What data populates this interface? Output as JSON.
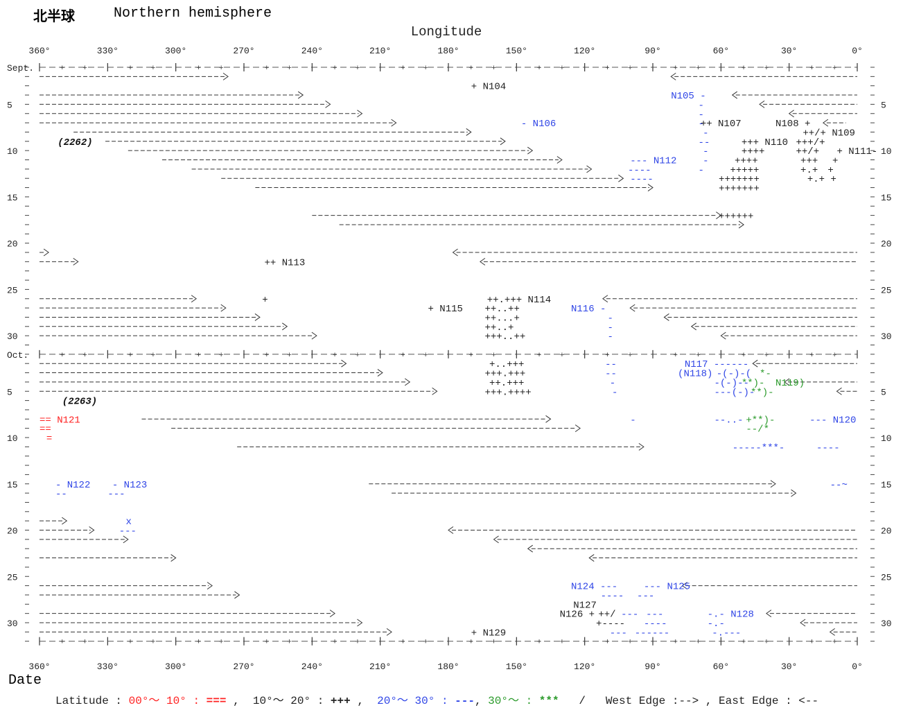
{
  "title_cn": "北半球",
  "title_en": "Northern hemisphere",
  "chart_data": {
    "type": "scatter",
    "xlabel": "Longitude",
    "ylabel": "Date",
    "x_ticks": [
      "360°",
      "330°",
      "300°",
      "270°",
      "240°",
      "210°",
      "180°",
      "150°",
      "120°",
      "90°",
      "60°",
      "30°",
      "0°"
    ],
    "axis_rows": [
      {
        "row": 0,
        "label": "Sept."
      },
      {
        "row": 31,
        "label": "Oct."
      },
      {
        "row": 62,
        "label": ""
      }
    ],
    "day_labels": [
      {
        "row": 4,
        "text": "5"
      },
      {
        "row": 9,
        "text": "10"
      },
      {
        "row": 14,
        "text": "15"
      },
      {
        "row": 19,
        "text": "20"
      },
      {
        "row": 24,
        "text": "25"
      },
      {
        "row": 29,
        "text": "30"
      },
      {
        "row": 35,
        "text": "5"
      },
      {
        "row": 40,
        "text": "10"
      },
      {
        "row": 45,
        "text": "15"
      },
      {
        "row": 50,
        "text": "20"
      },
      {
        "row": 55,
        "text": "25"
      },
      {
        "row": 60,
        "text": "30"
      }
    ],
    "rotation_labels": [
      {
        "row": 8,
        "lon": 352,
        "text": "(2262)"
      },
      {
        "row": 36,
        "lon": 350,
        "text": "(2263)"
      }
    ],
    "west_edge": [
      {
        "row": 1,
        "from": 360,
        "to": 277
      },
      {
        "row": 3,
        "from": 360,
        "to": 244
      },
      {
        "row": 4,
        "from": 360,
        "to": 232
      },
      {
        "row": 5,
        "from": 360,
        "to": 218
      },
      {
        "row": 6,
        "from": 360,
        "to": 203
      },
      {
        "row": 7,
        "from": 345,
        "to": 170
      },
      {
        "row": 8,
        "from": 331,
        "to": 155
      },
      {
        "row": 9,
        "from": 321,
        "to": 143
      },
      {
        "row": 10,
        "from": 306,
        "to": 130
      },
      {
        "row": 11,
        "from": 293,
        "to": 117
      },
      {
        "row": 12,
        "from": 280,
        "to": 103
      },
      {
        "row": 13,
        "from": 265,
        "to": 90
      },
      {
        "row": 16,
        "from": 240,
        "to": 60
      },
      {
        "row": 17,
        "from": 228,
        "to": 50
      },
      {
        "row": 20,
        "from": 360,
        "to": 356
      },
      {
        "row": 21,
        "from": 360,
        "to": 343
      },
      {
        "row": 25,
        "from": 360,
        "to": 291
      },
      {
        "row": 26,
        "from": 360,
        "to": 278
      },
      {
        "row": 27,
        "from": 360,
        "to": 263
      },
      {
        "row": 28,
        "from": 360,
        "to": 251
      },
      {
        "row": 29,
        "from": 360,
        "to": 238
      },
      {
        "row": 32,
        "from": 360,
        "to": 225
      },
      {
        "row": 33,
        "from": 360,
        "to": 209
      },
      {
        "row": 34,
        "from": 360,
        "to": 197
      },
      {
        "row": 35,
        "from": 360,
        "to": 185
      },
      {
        "row": 38,
        "from": 315,
        "to": 135
      },
      {
        "row": 39,
        "from": 302,
        "to": 122
      },
      {
        "row": 41,
        "from": 273,
        "to": 94
      },
      {
        "row": 45,
        "from": 215,
        "to": 36
      },
      {
        "row": 46,
        "from": 205,
        "to": 27
      },
      {
        "row": 49,
        "from": 360,
        "to": 348
      },
      {
        "row": 50,
        "from": 360,
        "to": 336
      },
      {
        "row": 51,
        "from": 360,
        "to": 321
      },
      {
        "row": 53,
        "from": 360,
        "to": 300
      },
      {
        "row": 56,
        "from": 360,
        "to": 284
      },
      {
        "row": 57,
        "from": 360,
        "to": 272
      },
      {
        "row": 59,
        "from": 360,
        "to": 230
      },
      {
        "row": 60,
        "from": 360,
        "to": 218
      },
      {
        "row": 61,
        "from": 360,
        "to": 205
      }
    ],
    "east_edge": [
      {
        "row": 1,
        "from": 82,
        "to": 0
      },
      {
        "row": 3,
        "from": 55,
        "to": 0
      },
      {
        "row": 4,
        "from": 43,
        "to": 0
      },
      {
        "row": 5,
        "from": 30,
        "to": 0
      },
      {
        "row": 6,
        "from": 15,
        "to": 5
      },
      {
        "row": 20,
        "from": 178,
        "to": 0
      },
      {
        "row": 21,
        "from": 166,
        "to": 0
      },
      {
        "row": 25,
        "from": 112,
        "to": 0
      },
      {
        "row": 26,
        "from": 100,
        "to": 0
      },
      {
        "row": 27,
        "from": 85,
        "to": 0
      },
      {
        "row": 28,
        "from": 73,
        "to": 0
      },
      {
        "row": 29,
        "from": 60,
        "to": 0
      },
      {
        "row": 32,
        "from": 46,
        "to": 0
      },
      {
        "row": 34,
        "from": 32,
        "to": 0
      },
      {
        "row": 35,
        "from": 9,
        "to": 0
      },
      {
        "row": 50,
        "from": 180,
        "to": 0
      },
      {
        "row": 51,
        "from": 160,
        "to": 0
      },
      {
        "row": 52,
        "from": 145,
        "to": 0
      },
      {
        "row": 53,
        "from": 118,
        "to": 0
      },
      {
        "row": 56,
        "from": 77,
        "to": 0
      },
      {
        "row": 59,
        "from": 40,
        "to": 0
      },
      {
        "row": 60,
        "from": 25,
        "to": 0
      },
      {
        "row": 61,
        "from": 12,
        "to": 0
      }
    ],
    "groups": [
      {
        "row": 2,
        "lon": 170,
        "text": "+ N104",
        "lat": "10-20"
      },
      {
        "row": 3,
        "lon": 82,
        "text": "N105 -",
        "lat": "20-30"
      },
      {
        "row": 4,
        "lon": 70,
        "text": "-",
        "lat": "20-30"
      },
      {
        "row": 5,
        "lon": 70,
        "text": "-",
        "lat": "20-30"
      },
      {
        "row": 6,
        "lon": 148,
        "text": "- N106",
        "lat": "20-30"
      },
      {
        "row": 6,
        "lon": 70,
        "text": "-",
        "lat": "20-30"
      },
      {
        "row": 6,
        "lon": 69,
        "text": "++ N107",
        "lat": "10-20"
      },
      {
        "row": 6,
        "lon": 36,
        "text": "N108 +",
        "lat": "10-20"
      },
      {
        "row": 7,
        "lon": 68,
        "text": "-",
        "lat": "20-30"
      },
      {
        "row": 7,
        "lon": 24,
        "text": "++/+ N109",
        "lat": "10-20"
      },
      {
        "row": 8,
        "lon": 70,
        "text": "--",
        "lat": "20-30"
      },
      {
        "row": 8,
        "lon": 51,
        "text": "+++ N110",
        "lat": "10-20"
      },
      {
        "row": 8,
        "lon": 27,
        "text": "+++/+",
        "lat": "10-20"
      },
      {
        "row": 9,
        "lon": 68,
        "text": "-",
        "lat": "20-30"
      },
      {
        "row": 9,
        "lon": 51,
        "text": "++++",
        "lat": "10-20"
      },
      {
        "row": 9,
        "lon": 27,
        "text": "++/+",
        "lat": "10-20"
      },
      {
        "row": 9,
        "lon": 9,
        "text": "+ N111-",
        "lat": "10-20"
      },
      {
        "row": 10,
        "lon": 100,
        "text": "--- N112",
        "lat": "20-30"
      },
      {
        "row": 10,
        "lon": 68,
        "text": "-",
        "lat": "20-30"
      },
      {
        "row": 10,
        "lon": 54,
        "text": "++++",
        "lat": "10-20"
      },
      {
        "row": 10,
        "lon": 25,
        "text": "+++",
        "lat": "10-20"
      },
      {
        "row": 10,
        "lon": 11,
        "text": "+",
        "lat": "10-20"
      },
      {
        "row": 11,
        "lon": 101,
        "text": "----",
        "lat": "20-30"
      },
      {
        "row": 11,
        "lon": 70,
        "text": "-",
        "lat": "20-30"
      },
      {
        "row": 11,
        "lon": 56,
        "text": "+++++",
        "lat": "10-20"
      },
      {
        "row": 11,
        "lon": 25,
        "text": "+.+",
        "lat": "10-20"
      },
      {
        "row": 11,
        "lon": 13,
        "text": "+",
        "lat": "10-20"
      },
      {
        "row": 12,
        "lon": 100,
        "text": "----",
        "lat": "20-30"
      },
      {
        "row": 12,
        "lon": 61,
        "text": "+++++++",
        "lat": "10-20"
      },
      {
        "row": 12,
        "lon": 22,
        "text": "+.+ +",
        "lat": "10-20"
      },
      {
        "row": 13,
        "lon": 61,
        "text": "+++++++",
        "lat": "10-20"
      },
      {
        "row": 16,
        "lon": 61,
        "text": "++++++",
        "lat": "10-20"
      },
      {
        "row": 21,
        "lon": 261,
        "text": "++ N113",
        "lat": "10-20"
      },
      {
        "row": 25,
        "lon": 262,
        "text": "+",
        "lat": "10-20"
      },
      {
        "row": 25,
        "lon": 163,
        "text": "++.+++ N114",
        "lat": "10-20"
      },
      {
        "row": 26,
        "lon": 189,
        "text": "+ N115",
        "lat": "10-20"
      },
      {
        "row": 26,
        "lon": 126,
        "text": "N116 -",
        "lat": "20-30"
      },
      {
        "row": 26,
        "lon": 164,
        "text": "++..++",
        "lat": "10-20"
      },
      {
        "row": 27,
        "lon": 110,
        "text": "-",
        "lat": "20-30"
      },
      {
        "row": 27,
        "lon": 164,
        "text": "++...+",
        "lat": "10-20"
      },
      {
        "row": 28,
        "lon": 110,
        "text": "-",
        "lat": "20-30"
      },
      {
        "row": 28,
        "lon": 164,
        "text": "++..+",
        "lat": "10-20"
      },
      {
        "row": 29,
        "lon": 110,
        "text": "-",
        "lat": "20-30"
      },
      {
        "row": 29,
        "lon": 164,
        "text": "+++..++",
        "lat": "10-20"
      },
      {
        "row": 32,
        "lon": 162,
        "text": "+..+++",
        "lat": "10-20"
      },
      {
        "row": 32,
        "lon": 111,
        "text": "--",
        "lat": "20-30"
      },
      {
        "row": 32,
        "lon": 76,
        "text": "N117 ------",
        "lat": "20-30"
      },
      {
        "row": 33,
        "lon": 164,
        "text": "+++.+++",
        "lat": "10-20"
      },
      {
        "row": 33,
        "lon": 111,
        "text": "--",
        "lat": "20-30"
      },
      {
        "row": 33,
        "lon": 79,
        "text": "(N118)",
        "lat": "20-30"
      },
      {
        "row": 33,
        "lon": 62,
        "text": "-(-)-(",
        "lat": "20-30"
      },
      {
        "row": 33,
        "lon": 43,
        "text": "*-",
        "lat": "30-40"
      },
      {
        "row": 34,
        "lon": 109,
        "text": "-",
        "lat": "20-30"
      },
      {
        "row": 34,
        "lon": 162,
        "text": "++.+++",
        "lat": "10-20"
      },
      {
        "row": 34,
        "lon": 63,
        "text": "-(-)--",
        "lat": "20-30"
      },
      {
        "row": 34,
        "lon": 51,
        "text": "**)-",
        "lat": "30-40"
      },
      {
        "row": 34,
        "lon": 36,
        "text": "N119)",
        "lat": "30-40"
      },
      {
        "row": 35,
        "lon": 164,
        "text": "+++.++++",
        "lat": "10-20"
      },
      {
        "row": 35,
        "lon": 108,
        "text": "-",
        "lat": "20-30"
      },
      {
        "row": 35,
        "lon": 63,
        "text": "---(-)-",
        "lat": "20-30"
      },
      {
        "row": 35,
        "lon": 47,
        "text": "**)-",
        "lat": "30-40"
      },
      {
        "row": 38,
        "lon": 360,
        "text": "== N121",
        "lat": "0-10"
      },
      {
        "row": 38,
        "lon": 100,
        "text": "-",
        "lat": "20-30"
      },
      {
        "row": 38,
        "lon": 63,
        "text": "--..-",
        "lat": "20-30"
      },
      {
        "row": 38,
        "lon": 49,
        "text": "+**)-",
        "lat": "30-40"
      },
      {
        "row": 38,
        "lon": 21,
        "text": "--- N120",
        "lat": "20-30"
      },
      {
        "row": 39,
        "lon": 360,
        "text": "==",
        "lat": "0-10"
      },
      {
        "row": 39,
        "lon": 49,
        "text": "--/*",
        "lat": "30-40"
      },
      {
        "row": 40,
        "lon": 357,
        "text": "=",
        "lat": "0-10"
      },
      {
        "row": 41,
        "lon": 55,
        "text": "-----***-",
        "lat": "20-30"
      },
      {
        "row": 41,
        "lon": 18,
        "text": "----",
        "lat": "20-30"
      },
      {
        "row": 45,
        "lon": 353,
        "text": "- N122",
        "lat": "20-30"
      },
      {
        "row": 45,
        "lon": 328,
        "text": "- N123",
        "lat": "20-30"
      },
      {
        "row": 45,
        "lon": 12,
        "text": "--~",
        "lat": "20-30"
      },
      {
        "row": 46,
        "lon": 353,
        "text": "--",
        "lat": "20-30"
      },
      {
        "row": 46,
        "lon": 330,
        "text": "---",
        "lat": "20-30"
      },
      {
        "row": 49,
        "lon": 322,
        "text": "x",
        "lat": "20-30"
      },
      {
        "row": 50,
        "lon": 325,
        "text": "---",
        "lat": "20-30"
      },
      {
        "row": 56,
        "lon": 126,
        "text": "N124 ---",
        "lat": "20-30"
      },
      {
        "row": 56,
        "lon": 94,
        "text": "--- N125",
        "lat": "20-30"
      },
      {
        "row": 57,
        "lon": 113,
        "text": "----",
        "lat": "20-30"
      },
      {
        "row": 57,
        "lon": 97,
        "text": "---",
        "lat": "20-30"
      },
      {
        "row": 58,
        "lon": 125,
        "text": "N127",
        "lat": "10-20"
      },
      {
        "row": 59,
        "lon": 131,
        "text": "N126 +",
        "lat": "10-20"
      },
      {
        "row": 59,
        "lon": 114,
        "text": "++/",
        "lat": "10-20"
      },
      {
        "row": 59,
        "lon": 104,
        "text": "---",
        "lat": "20-30"
      },
      {
        "row": 59,
        "lon": 93,
        "text": "---",
        "lat": "20-30"
      },
      {
        "row": 59,
        "lon": 66,
        "text": "-.- N128",
        "lat": "20-30"
      },
      {
        "row": 60,
        "lon": 115,
        "text": "+----",
        "lat": "10-20"
      },
      {
        "row": 60,
        "lon": 94,
        "text": "----",
        "lat": "20-30"
      },
      {
        "row": 60,
        "lon": 66,
        "text": "-.-",
        "lat": "20-30"
      },
      {
        "row": 61,
        "lon": 170,
        "text": "+ N129",
        "lat": "10-20"
      },
      {
        "row": 61,
        "lon": 109,
        "text": "---",
        "lat": "20-30"
      },
      {
        "row": 61,
        "lon": 98,
        "text": "------",
        "lat": "20-30"
      },
      {
        "row": 61,
        "lon": 64,
        "text": "-.---",
        "lat": "20-30"
      }
    ],
    "legend": {
      "prefix": "Latitude : ",
      "items": [
        {
          "range": "00°～ 10° : ",
          "sym": "===",
          "lat": "0-10",
          "after": " ,  "
        },
        {
          "range": "10°～ 20° : ",
          "sym": "+++",
          "lat": "10-20",
          "after": " ,  "
        },
        {
          "range": "20°～ 30° : ",
          "sym": "---",
          "lat": "20-30",
          "after": ", "
        },
        {
          "range": "30°～ : ",
          "sym": "***",
          "lat": "30-40",
          "after": "   /   "
        }
      ],
      "edges": "West Edge :--> , East Edge : <--"
    },
    "colors": {
      "0-10": "#ff2020",
      "10-20": "#222222",
      "20-30": "#2f45e6",
      "30-40": "#2a9a2a",
      "edge": "#333333"
    }
  }
}
